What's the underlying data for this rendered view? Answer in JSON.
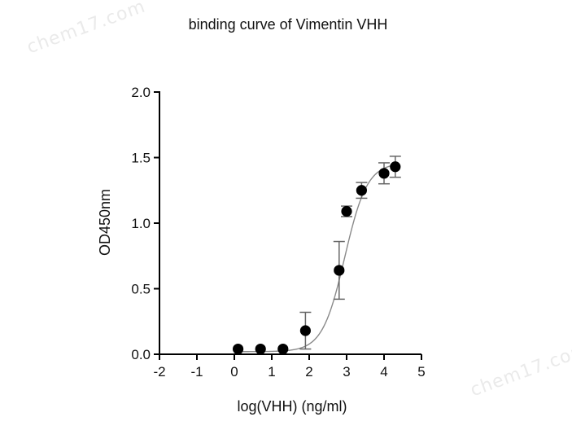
{
  "watermark": {
    "text": "chem17.com"
  },
  "chart_data": {
    "type": "scatter",
    "title": "binding curve of Vimentin  VHH",
    "xlabel": "log(VHH) (ng/ml)",
    "ylabel": "OD450nm",
    "xlim": [
      -2,
      5
    ],
    "ylim": [
      0,
      2
    ],
    "x_ticks": [
      -2,
      -1,
      0,
      1,
      2,
      3,
      4,
      5
    ],
    "y_ticks": [
      0.0,
      0.5,
      1.0,
      1.5,
      2.0
    ],
    "x_tick_labels": [
      "-2",
      "-1",
      "0",
      "1",
      "2",
      "3",
      "4",
      "5"
    ],
    "y_tick_labels": [
      "0.0",
      "0.5",
      "1.0",
      "1.5",
      "2.0"
    ],
    "grid": false,
    "legend": "none",
    "series": [
      {
        "type": "scatter",
        "x": [
          0.1,
          0.7,
          1.3,
          1.9,
          2.8,
          3.0,
          3.4,
          4.0,
          4.3
        ],
        "y": [
          0.04,
          0.04,
          0.04,
          0.18,
          0.64,
          1.09,
          1.25,
          1.38,
          1.43
        ],
        "error": [
          0.0,
          0.0,
          0.0,
          0.14,
          0.22,
          0.04,
          0.06,
          0.08,
          0.08
        ],
        "color": "#000000"
      }
    ],
    "fit_curve": {
      "type": "sigmoid",
      "bottom": 0.02,
      "top": 1.46,
      "logEC50": 2.95,
      "hill_slope": 1.45,
      "x_range": [
        0.1,
        4.3
      ],
      "color": "#8a8a8a"
    }
  }
}
